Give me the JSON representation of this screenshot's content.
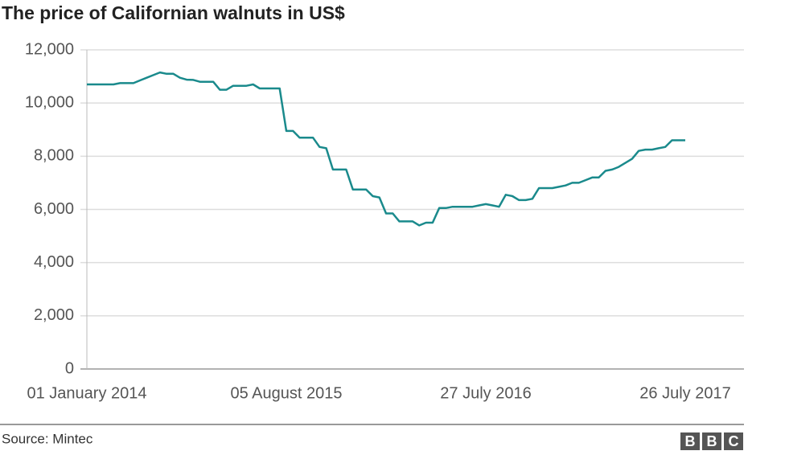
{
  "chart_data": {
    "type": "line",
    "title": "The price of Californian walnuts in US$",
    "source": "Source: Mintec",
    "brand": [
      "B",
      "B",
      "C"
    ],
    "categories": [
      "01 January 2014",
      null,
      null,
      null,
      null,
      null,
      null,
      null,
      null,
      null,
      null,
      null,
      null,
      null,
      null,
      null,
      null,
      null,
      null,
      null,
      null,
      null,
      null,
      null,
      null,
      null,
      null,
      null,
      null,
      null,
      "05 August 2015",
      null,
      null,
      null,
      null,
      null,
      null,
      null,
      null,
      null,
      null,
      null,
      null,
      null,
      null,
      null,
      null,
      null,
      null,
      null,
      null,
      null,
      null,
      null,
      null,
      null,
      null,
      null,
      null,
      null,
      "27 July 2016",
      null,
      null,
      null,
      null,
      null,
      null,
      null,
      null,
      null,
      null,
      null,
      null,
      null,
      null,
      null,
      null,
      null,
      null,
      null,
      null,
      null,
      null,
      null,
      null,
      null,
      null,
      null,
      null,
      null,
      "26 July 2017"
    ],
    "series": [
      {
        "name": "Price",
        "color": "#1a8a8c",
        "values": [
          10700,
          10700,
          10700,
          10700,
          10700,
          10750,
          10750,
          10750,
          10850,
          10950,
          11050,
          11150,
          11100,
          11100,
          10950,
          10880,
          10870,
          10800,
          10800,
          10800,
          10500,
          10500,
          10650,
          10650,
          10650,
          10700,
          10550,
          10550,
          10550,
          10550,
          8950,
          8950,
          8700,
          8700,
          8700,
          8350,
          8300,
          7500,
          7500,
          7500,
          6750,
          6750,
          6750,
          6500,
          6450,
          5850,
          5850,
          5550,
          5550,
          5550,
          5400,
          5500,
          5500,
          6050,
          6050,
          6100,
          6100,
          6100,
          6100,
          6150,
          6200,
          6150,
          6100,
          6550,
          6500,
          6350,
          6350,
          6400,
          6800,
          6800,
          6800,
          6850,
          6900,
          7000,
          7000,
          7100,
          7200,
          7200,
          7450,
          7500,
          7600,
          7750,
          7900,
          8200,
          8250,
          8250,
          8300,
          8350,
          8600,
          8600,
          8600
        ]
      }
    ],
    "ylim": [
      0,
      12000
    ],
    "yticks": [
      0,
      {
        "value": 2000,
        "label": "2,000"
      },
      {
        "value": 4000,
        "label": "4,000"
      },
      {
        "value": 6000,
        "label": "6,000"
      },
      {
        "value": 8000,
        "label": "8,000"
      },
      {
        "value": 10000,
        "label": "10,000"
      },
      {
        "value": 12000,
        "label": "12,000"
      }
    ],
    "grid": true
  }
}
